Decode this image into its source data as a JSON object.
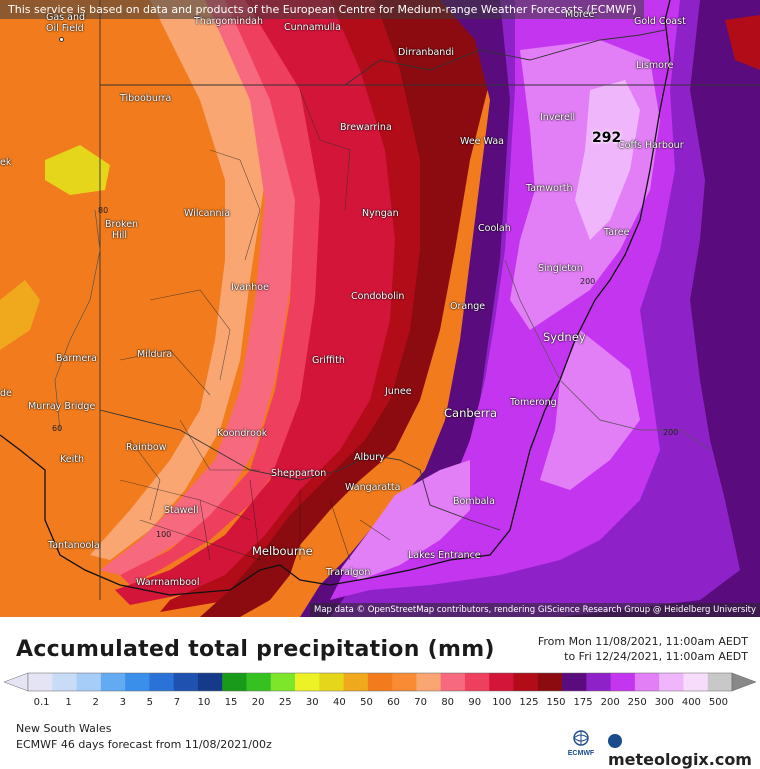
{
  "map": {
    "notice": "This service is based on data and products of the European Centre for Medium-range Weather Forecasts (ECMWF)",
    "attribution": "Map data © OpenStreetMap contributors, rendering GIScience Research Group @ Heidelberg University",
    "max_value": "292",
    "isoline_labels": [
      "80",
      "60",
      "100",
      "200",
      "200"
    ],
    "towns": [
      {
        "name": "Gas and"
      },
      {
        "name": "Oil Field"
      },
      {
        "name": "Thargomindah"
      },
      {
        "name": "Cunnamulla"
      },
      {
        "name": "Dirranbandi"
      },
      {
        "name": "Gold Coast"
      },
      {
        "name": "Lismore"
      },
      {
        "name": "Tibooburra"
      },
      {
        "name": "Brewarrina"
      },
      {
        "name": "Inverell"
      },
      {
        "name": "Wee Waa"
      },
      {
        "name": "Coffs Harbour"
      },
      {
        "name": "Tamworth"
      },
      {
        "name": "Broken"
      },
      {
        "name": "Hill"
      },
      {
        "name": "Wilcannia"
      },
      {
        "name": "Nyngan"
      },
      {
        "name": "Coolah"
      },
      {
        "name": "Taree"
      },
      {
        "name": "Singleton"
      },
      {
        "name": "Ivanhoe"
      },
      {
        "name": "Condobolin"
      },
      {
        "name": "Orange"
      },
      {
        "name": "Sydney"
      },
      {
        "name": "Barmera"
      },
      {
        "name": "Mildura"
      },
      {
        "name": "Griffith"
      },
      {
        "name": "Junee"
      },
      {
        "name": "Murray Bridge"
      },
      {
        "name": "Tomerong"
      },
      {
        "name": "Canberra"
      },
      {
        "name": "Koondrook"
      },
      {
        "name": "Rainbow"
      },
      {
        "name": "Keith"
      },
      {
        "name": "Albury"
      },
      {
        "name": "Shepparton"
      },
      {
        "name": "Wangaratta"
      },
      {
        "name": "Bombala"
      },
      {
        "name": "Stawell"
      },
      {
        "name": "Tantanoola"
      },
      {
        "name": "Melbourne"
      },
      {
        "name": "Lakes Entrance"
      },
      {
        "name": "Traralgon"
      },
      {
        "name": "Warrnambool"
      },
      {
        "name": "Moree"
      },
      {
        "name": "ek"
      },
      {
        "name": "de"
      }
    ]
  },
  "legend": {
    "title": "Accumulated total precipitation (mm)",
    "period_from": "From Mon 11/08/2021, 11:00am AEDT",
    "period_to": "to Fri 12/24/2021, 11:00am AEDT",
    "region": "New South Wales",
    "forecast": "ECMWF 46 days forecast from  11/08/2021/00z",
    "brand": "meteologix.com",
    "ecmwf_logo": "ECMWF",
    "ticks": [
      "0.1",
      "1",
      "2",
      "3",
      "5",
      "7",
      "10",
      "15",
      "20",
      "25",
      "30",
      "40",
      "50",
      "60",
      "70",
      "80",
      "90",
      "100",
      "125",
      "150",
      "175",
      "200",
      "250",
      "300",
      "400",
      "500"
    ],
    "colors": [
      "#e4e4f4",
      "#c8dcf8",
      "#a6cdf7",
      "#64aaf2",
      "#3a8fea",
      "#2b72d8",
      "#1f52b0",
      "#163a8a",
      "#1a9a1a",
      "#35c221",
      "#7de52a",
      "#ecf225",
      "#e5d61c",
      "#f0a81d",
      "#f27c1d",
      "#f88b33",
      "#f9a673",
      "#f6697e",
      "#ef3f5e",
      "#d4153a",
      "#b10c18",
      "#8b0b10",
      "#5a0c7e",
      "#8e22c8",
      "#c435ef",
      "#e27ef6",
      "#f0b6fb",
      "#f8dcfc",
      "#c8c8c8"
    ]
  }
}
